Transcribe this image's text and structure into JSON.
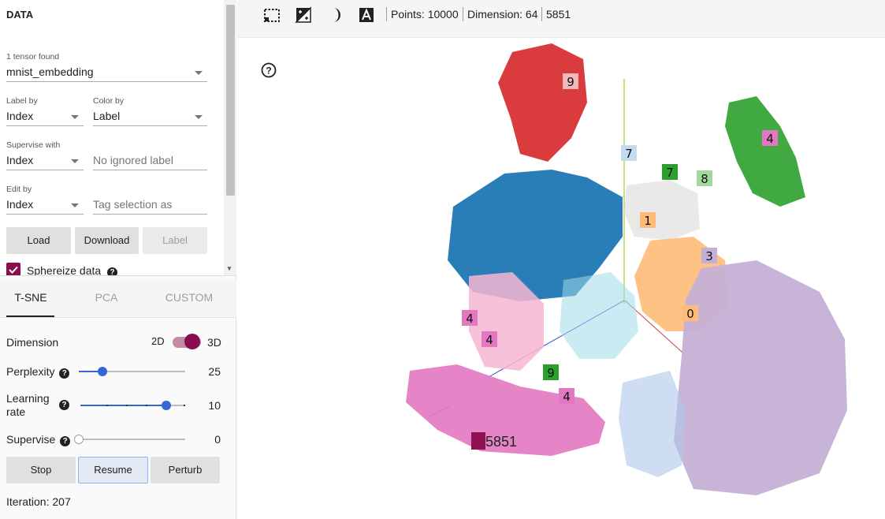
{
  "data_panel": {
    "title": "DATA",
    "tensor": {
      "label": "1 tensor found",
      "value": "mnist_embedding"
    },
    "label_by": {
      "label": "Label by",
      "value": "Index"
    },
    "color_by": {
      "label": "Color by",
      "value": "Label"
    },
    "supervise_with": {
      "label": "Supervise with",
      "value": "Index"
    },
    "ignored_label": {
      "placeholder": "No ignored label"
    },
    "edit_by": {
      "label": "Edit by",
      "value": "Index"
    },
    "tag_selection": {
      "placeholder": "Tag selection as"
    },
    "buttons": {
      "load": "Load",
      "download": "Download",
      "label": "Label"
    },
    "sphereize": {
      "label": "Sphereize data",
      "checked": true
    }
  },
  "tabs": [
    {
      "label": "T-SNE"
    },
    {
      "label": "PCA"
    },
    {
      "label": "CUSTOM"
    }
  ],
  "tsne": {
    "dimension": {
      "label": "Dimension",
      "option_2d": "2D",
      "option_3d": "3D",
      "selected": "3D"
    },
    "perplexity": {
      "label": "Perplexity",
      "value": "25",
      "fraction": 0.22
    },
    "learning_rate": {
      "label_line1": "Learning",
      "label_line2": "rate",
      "value": "10",
      "fraction": 0.82
    },
    "supervise": {
      "label": "Supervise",
      "value": "0",
      "fraction": 0
    },
    "buttons": {
      "stop": "Stop",
      "resume": "Resume",
      "perturb": "Perturb"
    },
    "iteration": "Iteration: 207"
  },
  "toolbar": {
    "icons": [
      "select-rectangle-icon",
      "night-mode-icon",
      "moon-icon",
      "labels-icon"
    ],
    "points": "Points: 10000",
    "dimension": "Dimension: 64",
    "selected": "5851"
  },
  "projection": {
    "selected_label": "5851",
    "cluster_colors": {
      "digit0": "#1f77b4",
      "digit1": "#ffbb78",
      "digit2": "#d62728",
      "digit3": "#c5b0d5",
      "digit4": "#e377c2",
      "digit5": "#9edae5",
      "digit6": "#f7b6d2",
      "digit7": "#aec7e8",
      "digit8": "#2ca02c",
      "digit9": "#e7e7e7"
    }
  }
}
